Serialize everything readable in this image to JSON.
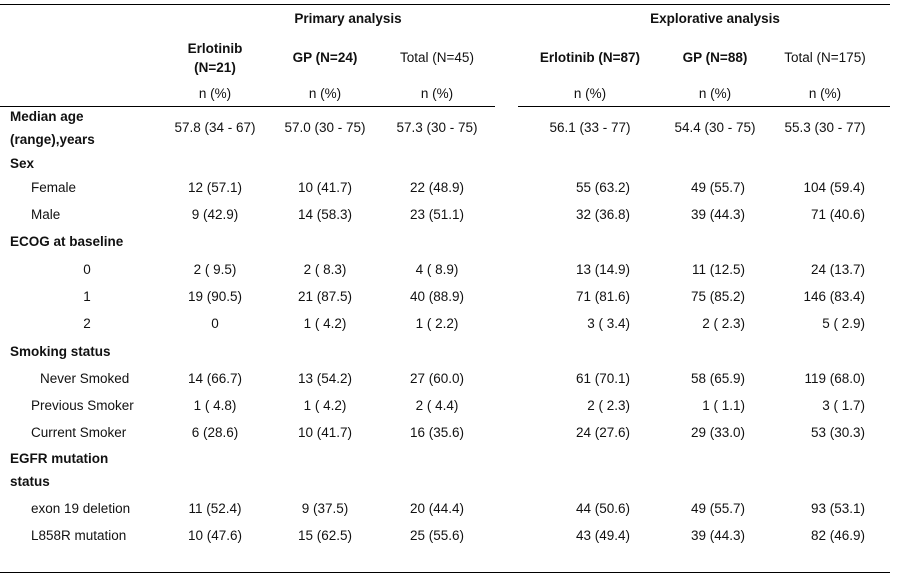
{
  "table": {
    "group_headers": {
      "primary": "Primary analysis",
      "explorative": "Explorative analysis"
    },
    "columns": [
      {
        "label_line1": "Erlotinib",
        "label_line2": "(N=21)",
        "unit": "n (%)"
      },
      {
        "label_line1": "GP (N=24)",
        "label_line2": "",
        "unit": "n (%)"
      },
      {
        "label_line1": "Total (N=45)",
        "label_line2": "",
        "unit": "n (%)"
      },
      {
        "label_line1": "Erlotinib (N=87)",
        "label_line2": "",
        "unit": "n (%)"
      },
      {
        "label_line1": "GP (N=88)",
        "label_line2": "",
        "unit": "n (%)"
      },
      {
        "label_line1": "Total (N=175)",
        "label_line2": "",
        "unit": "n (%)"
      }
    ],
    "age": {
      "label_line1": "Median age",
      "label_line2": "(range),years",
      "values": [
        "57.8 (34 - 67)",
        "57.0 (30 - 75)",
        "57.3 (30 - 75)",
        "56.1 (33 - 77)",
        "54.4 (30 - 75)",
        "55.3 (30 - 77)"
      ]
    },
    "sex": {
      "heading": "Sex",
      "rows": [
        {
          "label": "Female",
          "values": [
            "12 (57.1)",
            "10 (41.7)",
            "22 (48.9)",
            "55 (63.2)",
            "49 (55.7)",
            "104 (59.4)"
          ]
        },
        {
          "label": "Male",
          "values": [
            "9 (42.9)",
            "14 (58.3)",
            "23 (51.1)",
            "32 (36.8)",
            "39 (44.3)",
            "71 (40.6)"
          ]
        }
      ]
    },
    "ecog": {
      "heading": "ECOG at baseline",
      "rows": [
        {
          "label": "0",
          "values": [
            "2 ( 9.5)",
            "2 ( 8.3)",
            "4 ( 8.9)",
            "13 (14.9)",
            "11 (12.5)",
            "24 (13.7)"
          ]
        },
        {
          "label": "1",
          "values": [
            "19 (90.5)",
            "21 (87.5)",
            "40 (88.9)",
            "71 (81.6)",
            "75 (85.2)",
            "146 (83.4)"
          ]
        },
        {
          "label": "2",
          "values": [
            "0",
            "1 ( 4.2)",
            "1 ( 2.2)",
            "3 ( 3.4)",
            "2 ( 2.3)",
            "5 ( 2.9)"
          ]
        }
      ]
    },
    "smoking": {
      "heading": "Smoking status",
      "rows": [
        {
          "label": "Never Smoked",
          "values": [
            "14 (66.7)",
            "13 (54.2)",
            "27 (60.0)",
            "61 (70.1)",
            "58 (65.9)",
            "119 (68.0)"
          ]
        },
        {
          "label": "Previous Smoker",
          "values": [
            "1 ( 4.8)",
            "1 ( 4.2)",
            "2 ( 4.4)",
            "2 ( 2.3)",
            "1 ( 1.1)",
            "3 ( 1.7)"
          ]
        },
        {
          "label": "Current Smoker",
          "values": [
            "6 (28.6)",
            "10 (41.7)",
            "16 (35.6)",
            "24 (27.6)",
            "29 (33.0)",
            "53 (30.3)"
          ]
        }
      ]
    },
    "egfr": {
      "heading_line1": "EGFR mutation",
      "heading_line2": "status",
      "rows": [
        {
          "label": "exon 19 deletion",
          "values": [
            "11 (52.4)",
            "9 (37.5)",
            "20 (44.4)",
            "44 (50.6)",
            "49 (55.7)",
            "93 (53.1)"
          ]
        },
        {
          "label": "L858R mutation",
          "values": [
            "10 (47.6)",
            "15 (62.5)",
            "25 (55.6)",
            "43 (49.4)",
            "39 (44.3)",
            "82 (46.9)"
          ]
        }
      ]
    }
  }
}
